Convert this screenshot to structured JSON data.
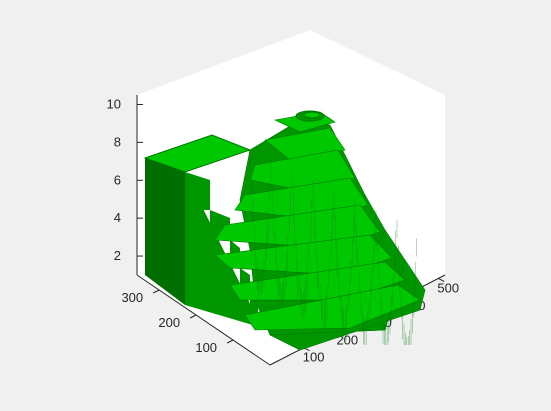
{
  "chart_data": {
    "type": "surface3d",
    "title": "",
    "xlabel": "",
    "ylabel": "",
    "zlabel": "",
    "x_ticks": [
      100,
      200,
      300,
      400,
      500
    ],
    "y_ticks": [
      100,
      200,
      300
    ],
    "z_ticks": [
      2,
      4,
      6,
      8,
      10
    ],
    "xlim": [
      0,
      520
    ],
    "ylim": [
      0,
      360
    ],
    "zlim": [
      1,
      10.5
    ],
    "grid": false,
    "view": "isometric",
    "face_color": "#00c800",
    "edge_color": "#007800",
    "plateau_level": 8,
    "terrace_levels": [
      1,
      2,
      3,
      4,
      5,
      6,
      7,
      8,
      9,
      10
    ],
    "peak_level": 10
  }
}
